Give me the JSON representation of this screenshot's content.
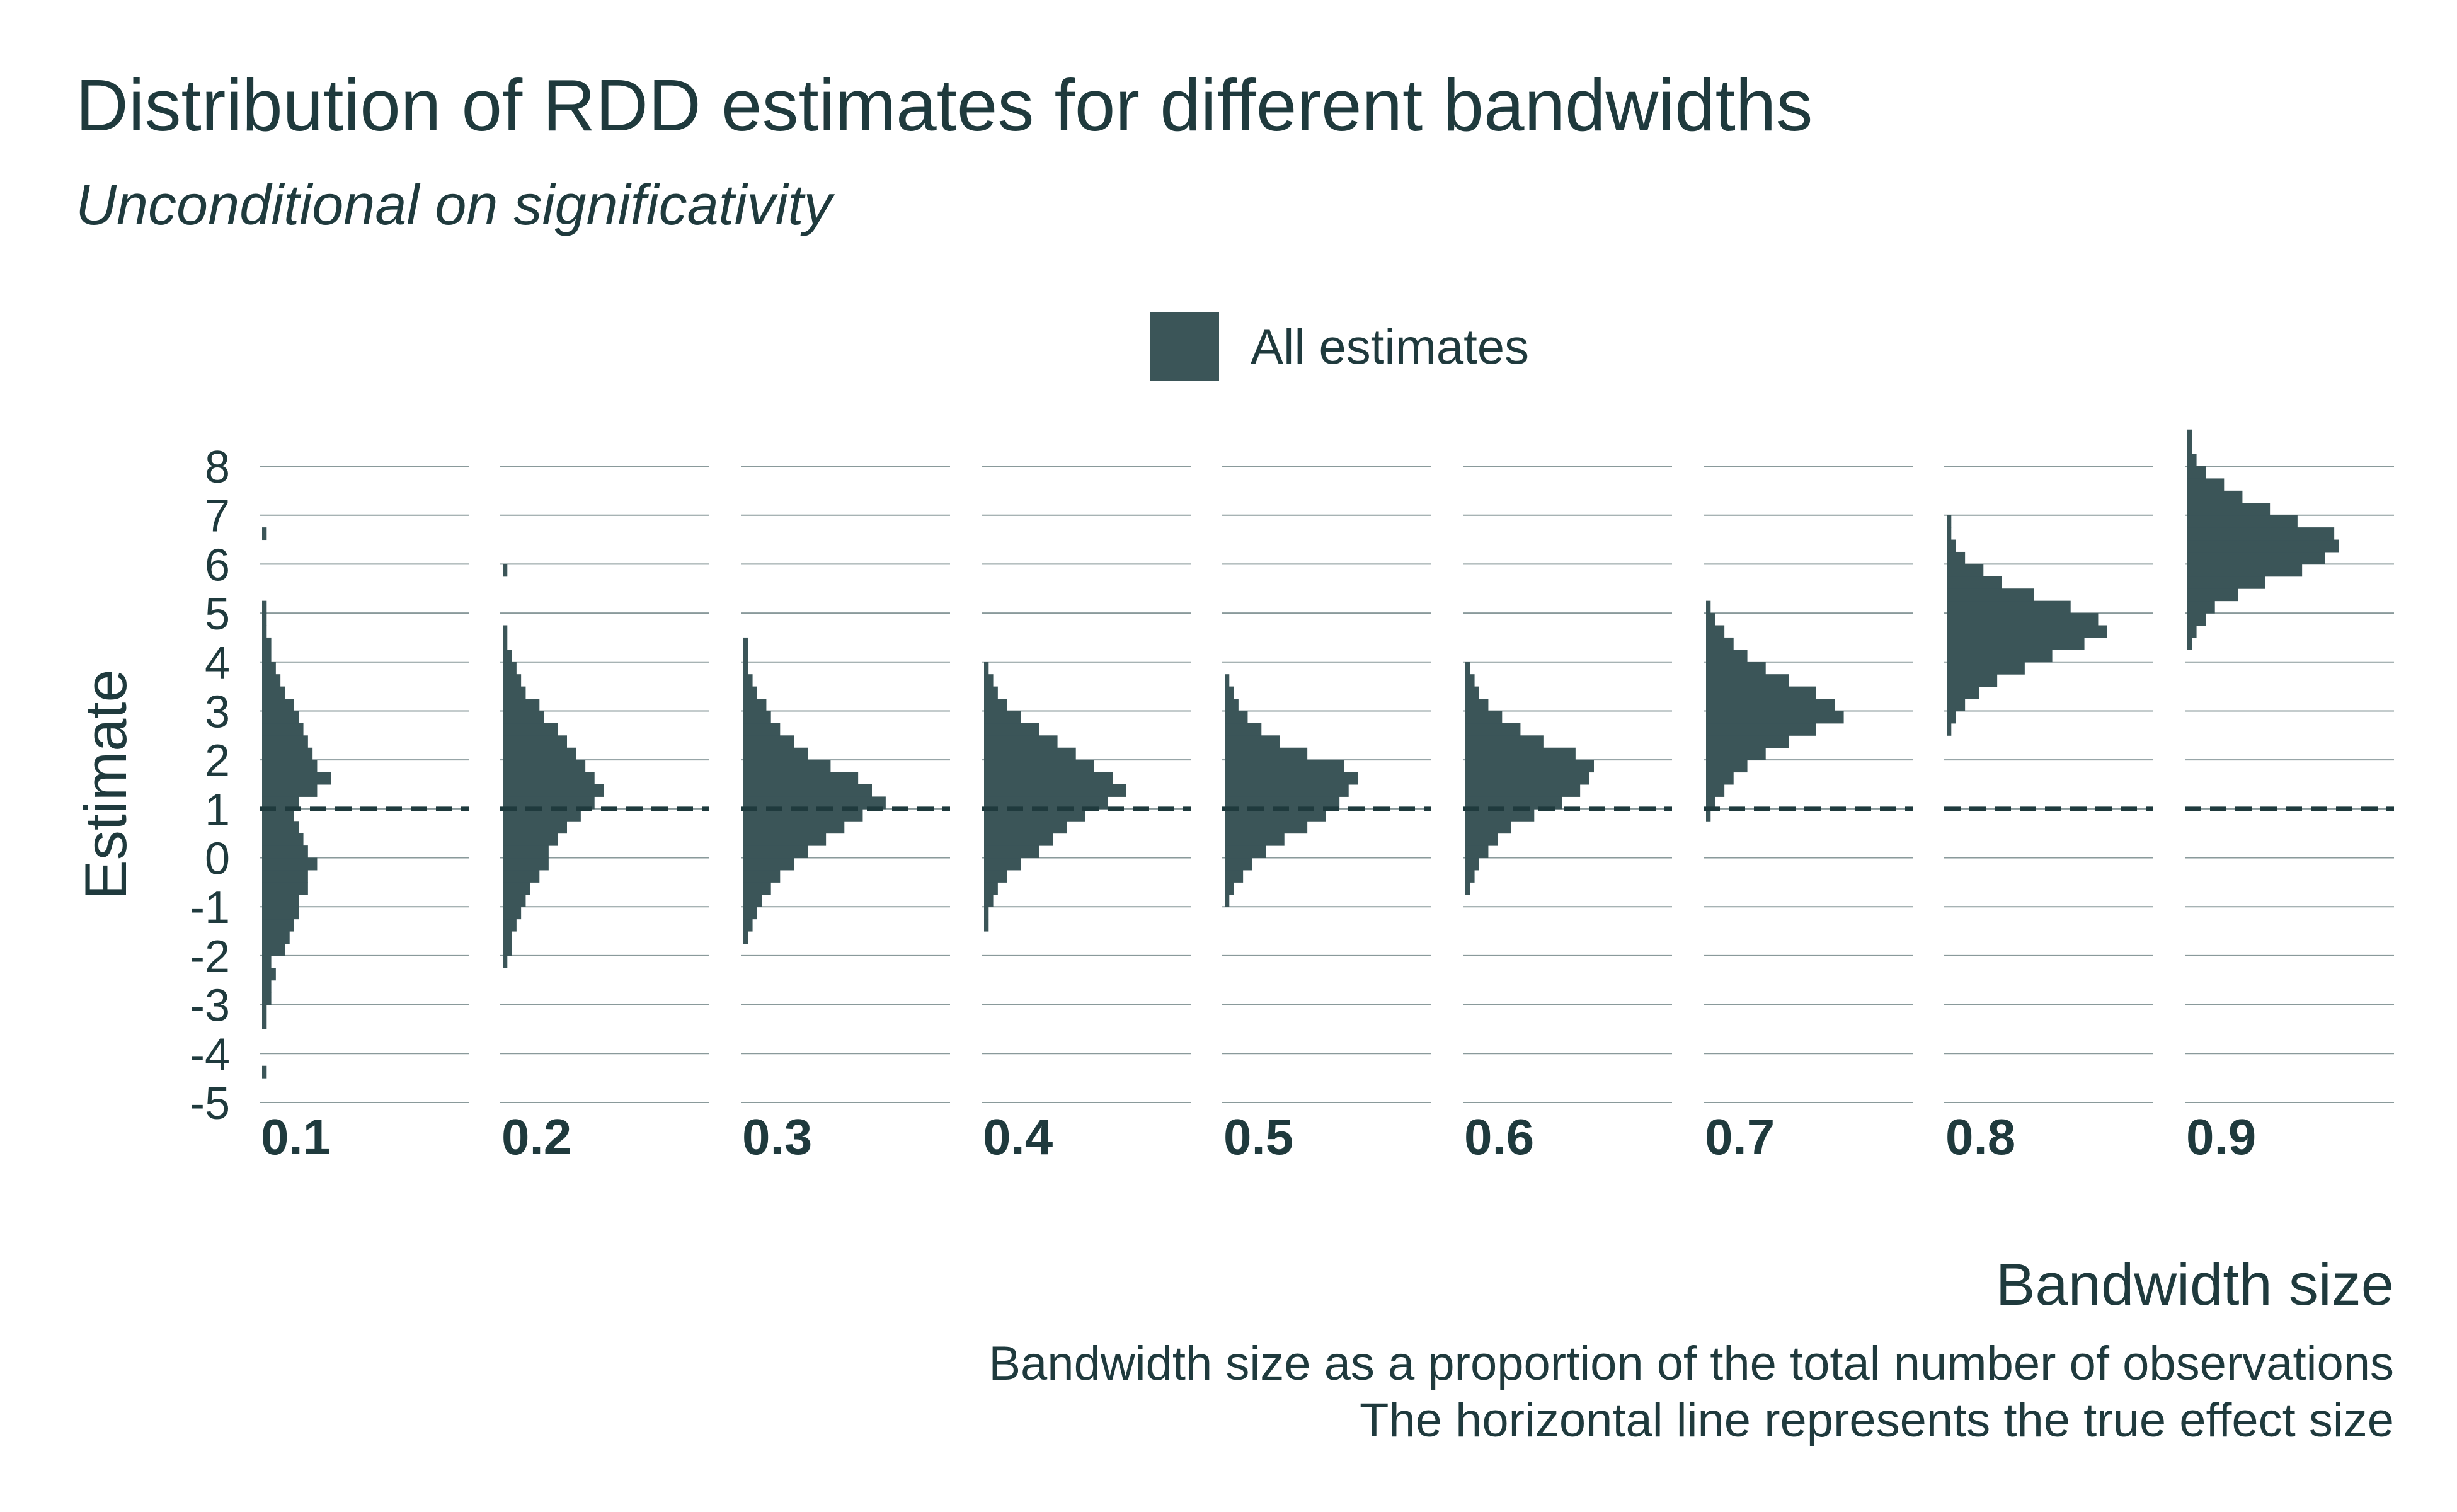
{
  "chart_data": {
    "type": "bar",
    "orientation": "horizontal-histogram-facets",
    "title": "Distribution of RDD estimates for different bandwidths",
    "subtitle": "Unconditional on significativity",
    "xlabel": "Bandwidth size",
    "ylabel": "Estimate",
    "caption_lines": [
      "Bandwidth size as a proportion of the total number of observations",
      "The horizontal line represents the true effect size"
    ],
    "legend": {
      "position": "top",
      "entries": [
        "All estimates"
      ]
    },
    "colors": {
      "bar": "#3b5558",
      "text": "#1f3a3d",
      "grid": "#8a9a9b",
      "reference": "#1f3a3d"
    },
    "reference_line": {
      "y": 1,
      "style": "dashed"
    },
    "ylim": [
      -5,
      8
    ],
    "yticks": [
      "8",
      "7",
      "6",
      "5",
      "4",
      "3",
      "2",
      "1",
      "0",
      "-1",
      "-2",
      "-3",
      "-4",
      "-5"
    ],
    "grid": true,
    "bin_width": 0.25,
    "facets": [
      {
        "label": "0.1",
        "bin_start": -4.5,
        "counts": [
          1,
          0,
          0,
          0,
          1,
          1,
          2,
          2,
          3,
          2,
          5,
          6,
          7,
          8,
          8,
          10,
          10,
          12,
          10,
          9,
          8,
          7,
          8,
          12,
          15,
          12,
          11,
          10,
          9,
          8,
          7,
          5,
          4,
          3,
          2,
          2,
          1,
          1,
          1,
          0,
          0,
          0,
          0,
          0,
          1
        ]
      },
      {
        "label": "0.2",
        "bin_start": -2.25,
        "counts": [
          1,
          2,
          2,
          3,
          4,
          5,
          6,
          8,
          10,
          10,
          12,
          14,
          17,
          20,
          22,
          20,
          18,
          16,
          14,
          12,
          9,
          8,
          5,
          4,
          3,
          2,
          1,
          1,
          0,
          0,
          0,
          0,
          1
        ]
      },
      {
        "label": "0.3",
        "bin_start": -1.75,
        "counts": [
          1,
          2,
          3,
          4,
          6,
          8,
          11,
          14,
          18,
          22,
          26,
          31,
          28,
          25,
          19,
          14,
          11,
          8,
          6,
          5,
          3,
          2,
          1,
          1,
          1
        ]
      },
      {
        "label": "0.4",
        "bin_start": -1.5,
        "counts": [
          1,
          1,
          2,
          3,
          5,
          8,
          12,
          15,
          18,
          22,
          27,
          31,
          28,
          24,
          20,
          16,
          12,
          8,
          5,
          3,
          2,
          1
        ]
      },
      {
        "label": "0.5",
        "bin_start": -1.0,
        "counts": [
          1,
          2,
          4,
          6,
          9,
          13,
          18,
          22,
          25,
          27,
          29,
          26,
          18,
          12,
          8,
          5,
          3,
          2,
          1
        ]
      },
      {
        "label": "0.6",
        "bin_start": -0.75,
        "counts": [
          1,
          2,
          3,
          5,
          7,
          10,
          15,
          21,
          25,
          27,
          28,
          24,
          17,
          12,
          8,
          5,
          3,
          2,
          1
        ]
      },
      {
        "label": "0.7",
        "bin_start": 0.75,
        "counts": [
          1,
          2,
          4,
          6,
          9,
          13,
          18,
          24,
          30,
          28,
          24,
          18,
          13,
          9,
          6,
          4,
          2,
          1
        ]
      },
      {
        "label": "0.8",
        "bin_start": 2.5,
        "counts": [
          1,
          2,
          4,
          7,
          11,
          17,
          23,
          30,
          35,
          33,
          27,
          19,
          12,
          8,
          4,
          2,
          1,
          1
        ]
      },
      {
        "label": "0.9",
        "bin_start": 4.25,
        "counts": [
          1,
          2,
          4,
          6,
          11,
          17,
          25,
          30,
          33,
          32,
          24,
          18,
          12,
          8,
          4,
          2,
          1,
          1
        ]
      }
    ]
  }
}
